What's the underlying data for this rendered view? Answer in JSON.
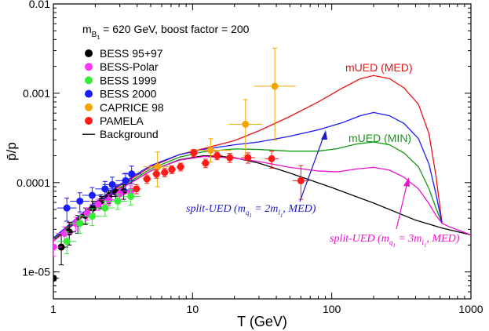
{
  "chart_data": {
    "type": "scatter",
    "xscale": "log",
    "yscale": "log",
    "xlim": [
      1,
      1000
    ],
    "ylim": [
      5e-06,
      0.01
    ],
    "xlabel": "T (GeV)",
    "ylabel": "p̄/p",
    "x_ticks": [
      {
        "value": 1,
        "label": "1"
      },
      {
        "value": 10,
        "label": "10"
      },
      {
        "value": 100,
        "label": "100"
      },
      {
        "value": 1000,
        "label": "1000"
      }
    ],
    "y_ticks": [
      {
        "value": 1e-05,
        "label": "1e-05"
      },
      {
        "value": 0.0001,
        "label": "0.0001"
      },
      {
        "value": 0.001,
        "label": "0.001"
      },
      {
        "value": 0.01,
        "label": "0.01"
      }
    ],
    "title_parts": {
      "m": "m",
      "sub": "B",
      "subsub": "1",
      "rest": " = 620 GeV, boost factor = 200"
    },
    "legend": {
      "placement": "upper-left",
      "entries": [
        {
          "label": "BESS 95+97",
          "color": "#000000",
          "kind": "marker"
        },
        {
          "label": "BESS-Polar",
          "color": "#ff33ff",
          "kind": "marker"
        },
        {
          "label": "BESS 1999",
          "color": "#33ee33",
          "kind": "marker"
        },
        {
          "label": "BESS 2000",
          "color": "#1a1aff",
          "kind": "marker"
        },
        {
          "label": "CAPRICE 98",
          "color": "#f5a500",
          "kind": "marker"
        },
        {
          "label": "PAMELA",
          "color": "#ff1a1a",
          "kind": "marker"
        },
        {
          "label": "Background",
          "color": "#000000",
          "kind": "line"
        }
      ]
    },
    "annotations": {
      "mued_med": {
        "label": "mUED (MED)",
        "color": "#ee1111"
      },
      "mued_min": {
        "label": "mUED (MIN)",
        "color": "#119911"
      },
      "split_ued_2": {
        "prefix": "split-UED (m",
        "sub1": "q",
        "subsub1": "1",
        "mid": " = 2m",
        "sub2": "l",
        "subsub2": "1",
        "suffix": ", MED)",
        "color": "#1a1acc"
      },
      "split_ued_3": {
        "prefix": "split-UED (m",
        "sub1": "q",
        "subsub1": "1",
        "mid": " = 3m",
        "sub2": "l",
        "subsub2": "1",
        "suffix": ", MED)",
        "color": "#ee11cc"
      }
    },
    "series": [
      {
        "name": "Background",
        "kind": "line",
        "color": "#000000",
        "points": [
          [
            1,
            2.25e-05
          ],
          [
            1.5,
            3.8e-05
          ],
          [
            2,
            5.5e-05
          ],
          [
            3,
            8.5e-05
          ],
          [
            5,
            0.000135
          ],
          [
            8,
            0.00018
          ],
          [
            12,
            0.0002
          ],
          [
            15,
            0.000198
          ],
          [
            20,
            0.00019
          ],
          [
            30,
            0.000165
          ],
          [
            50,
            0.000128
          ],
          [
            100,
            8.8e-05
          ],
          [
            200,
            5.9e-05
          ],
          [
            400,
            3.8e-05
          ],
          [
            620,
            3.1e-05
          ],
          [
            1000,
            2.6e-05
          ]
        ]
      },
      {
        "name": "mUED (MED)",
        "kind": "line",
        "color": "#ee1111",
        "points": [
          [
            1,
            2.35e-05
          ],
          [
            1.5,
            4e-05
          ],
          [
            2,
            5.8e-05
          ],
          [
            3,
            9.2e-05
          ],
          [
            5,
            0.00015
          ],
          [
            8,
            0.000205
          ],
          [
            12,
            0.00024
          ],
          [
            20,
            0.000295
          ],
          [
            30,
            0.00038
          ],
          [
            50,
            0.00055
          ],
          [
            80,
            0.0008
          ],
          [
            120,
            0.00115
          ],
          [
            160,
            0.00145
          ],
          [
            200,
            0.00158
          ],
          [
            260,
            0.00146
          ],
          [
            330,
            0.00115
          ],
          [
            420,
            0.00075
          ],
          [
            500,
            0.00035
          ],
          [
            560,
            0.00012
          ],
          [
            620,
            3.5e-05
          ]
        ]
      },
      {
        "name": "mUED (MIN)",
        "kind": "line",
        "color": "#119911",
        "points": [
          [
            1,
            2.3e-05
          ],
          [
            1.5,
            3.9e-05
          ],
          [
            2,
            5.6e-05
          ],
          [
            3,
            8.8e-05
          ],
          [
            5,
            0.000142
          ],
          [
            8,
            0.000192
          ],
          [
            12,
            0.000222
          ],
          [
            20,
            0.000238
          ],
          [
            30,
            0.000235
          ],
          [
            50,
            0.000225
          ],
          [
            80,
            0.000225
          ],
          [
            110,
            0.00024
          ],
          [
            150,
            0.00027
          ],
          [
            200,
            0.000285
          ],
          [
            260,
            0.000265
          ],
          [
            330,
            0.000215
          ],
          [
            420,
            0.00015
          ],
          [
            500,
            8.5e-05
          ],
          [
            560,
            5.2e-05
          ],
          [
            620,
            3.5e-05
          ]
        ]
      },
      {
        "name": "split-UED (MED, 2)",
        "kind": "line",
        "color": "#1a1aff",
        "points": [
          [
            1,
            2.4e-05
          ],
          [
            1.5,
            4.1e-05
          ],
          [
            2,
            6e-05
          ],
          [
            3,
            9.5e-05
          ],
          [
            5,
            0.000155
          ],
          [
            8,
            0.000205
          ],
          [
            12,
            0.000235
          ],
          [
            20,
            0.000265
          ],
          [
            30,
            0.000285
          ],
          [
            50,
            0.00033
          ],
          [
            80,
            0.00039
          ],
          [
            120,
            0.00047
          ],
          [
            160,
            0.00056
          ],
          [
            200,
            0.00061
          ],
          [
            260,
            0.00056
          ],
          [
            330,
            0.00046
          ],
          [
            420,
            0.00031
          ],
          [
            500,
            0.00016
          ],
          [
            560,
            7.5e-05
          ],
          [
            620,
            3.5e-05
          ]
        ]
      },
      {
        "name": "split-UED (MED, 3)",
        "kind": "line",
        "color": "#ee11cc",
        "points": [
          [
            1,
            2.2e-05
          ],
          [
            1.5,
            3.7e-05
          ],
          [
            2,
            5.4e-05
          ],
          [
            3,
            8.4e-05
          ],
          [
            5,
            0.000135
          ],
          [
            8,
            0.000178
          ],
          [
            12,
            0.000196
          ],
          [
            20,
            0.000188
          ],
          [
            30,
            0.000172
          ],
          [
            50,
            0.000148
          ],
          [
            80,
            0.000135
          ],
          [
            110,
            0.000132
          ],
          [
            150,
            0.000142
          ],
          [
            200,
            0.000148
          ],
          [
            260,
            0.000138
          ],
          [
            330,
            0.000115
          ],
          [
            420,
            8.5e-05
          ],
          [
            500,
            5.8e-05
          ],
          [
            560,
            4.3e-05
          ],
          [
            620,
            3.5e-05
          ],
          [
            700,
            3.2e-05
          ],
          [
            1000,
            2.6e-05
          ]
        ]
      },
      {
        "name": "BESS 95+97",
        "kind": "points",
        "color": "#000000",
        "points": [
          [
            1.0,
            8.5e-06,
            1.5e-06,
            1.5e-06,
            0.04
          ],
          [
            1.14,
            1.9e-05,
            7e-06,
            7e-06,
            0.05
          ],
          [
            1.3,
            2.8e-05,
            8e-06,
            8e-06,
            0.05
          ],
          [
            1.5,
            3.5e-05,
            8e-06,
            8e-06,
            0.06
          ],
          [
            1.7,
            4.3e-05,
            9e-06,
            9e-06,
            0.06
          ],
          [
            1.93,
            5.2e-05,
            1e-05,
            1e-05,
            0.06
          ],
          [
            2.2,
            6.2e-05,
            1.1e-05,
            1.1e-05,
            0.07
          ],
          [
            2.5,
            7e-05,
            1.2e-05,
            1.2e-05,
            0.07
          ],
          [
            2.8,
            7.8e-05,
            1.4e-05,
            1.4e-05,
            0.07
          ],
          [
            3.2,
            8e-05,
            1.5e-05,
            1.5e-05,
            0.07
          ]
        ]
      },
      {
        "name": "BESS-Polar",
        "kind": "points",
        "color": "#ff33ff",
        "points": [
          [
            1.0,
            1.9e-05,
            4e-06,
            4e-06,
            0.06
          ],
          [
            1.2,
            2.7e-05,
            5e-06,
            5e-06,
            0.06
          ],
          [
            1.45,
            3.5e-05,
            6e-06,
            6e-06,
            0.06
          ],
          [
            1.75,
            4.5e-05,
            7e-06,
            7e-06,
            0.06
          ],
          [
            2.1,
            5.7e-05,
            8e-06,
            8e-06,
            0.06
          ],
          [
            2.5,
            6.4e-05,
            9e-06,
            9e-06,
            0.06
          ],
          [
            3.0,
            7.5e-05,
            1e-05,
            1e-05,
            0.06
          ],
          [
            3.6,
            8e-05,
            1.2e-05,
            1.2e-05,
            0.06
          ]
        ]
      },
      {
        "name": "BESS 1999",
        "kind": "points",
        "color": "#33ee33",
        "points": [
          [
            1.25,
            2.2e-05,
            6e-06,
            6e-06,
            0.07
          ],
          [
            1.55,
            3.5e-05,
            8e-06,
            8e-06,
            0.07
          ],
          [
            1.9,
            4.2e-05,
            9e-06,
            9e-06,
            0.07
          ],
          [
            2.35,
            5.2e-05,
            1e-05,
            1e-05,
            0.07
          ],
          [
            2.9,
            6.2e-05,
            1.2e-05,
            1.2e-05,
            0.07
          ],
          [
            3.6,
            7e-05,
            1.4e-05,
            1.4e-05,
            0.07
          ]
        ]
      },
      {
        "name": "BESS 2000",
        "kind": "points",
        "color": "#1a1aff",
        "points": [
          [
            1.25,
            5.2e-05,
            1.5e-05,
            1.5e-05,
            0.07
          ],
          [
            1.55,
            6.2e-05,
            1.5e-05,
            1.5e-05,
            0.07
          ],
          [
            1.9,
            7.2e-05,
            1.6e-05,
            1.6e-05,
            0.07
          ],
          [
            2.35,
            8.5e-05,
            1.8e-05,
            1.8e-05,
            0.07
          ],
          [
            2.65,
            9.5e-05,
            2e-05,
            2e-05,
            0.07
          ],
          [
            3.3,
            0.000105,
            2.2e-05,
            2.2e-05,
            0.07
          ],
          [
            3.65,
            0.000125,
            2.8e-05,
            2.8e-05,
            0.07
          ]
        ]
      },
      {
        "name": "CAPRICE 98",
        "kind": "points",
        "color": "#f5a500",
        "points": [
          [
            5.6,
            0.00015,
            7e-05,
            6e-05,
            0.1
          ],
          [
            13.5,
            0.00023,
            8e-05,
            6e-05,
            0.15
          ],
          [
            24,
            0.00045,
            0.0004,
            0.00025,
            0.12
          ],
          [
            39,
            0.0012,
            0.002,
            0.0009,
            0.15
          ]
        ]
      },
      {
        "name": "PAMELA",
        "kind": "points",
        "color": "#ff1a1a",
        "points": [
          [
            3.95,
            8.5e-05,
            1e-05,
            1e-05,
            0.03
          ],
          [
            4.7,
            0.00011,
            1.2e-05,
            1.2e-05,
            0.03
          ],
          [
            5.5,
            0.000125,
            1.3e-05,
            1.3e-05,
            0.03
          ],
          [
            6.3,
            0.00013,
            1.4e-05,
            1.4e-05,
            0.03
          ],
          [
            7.1,
            0.00014,
            1.4e-05,
            1.4e-05,
            0.03
          ],
          [
            8.2,
            0.00015,
            1.5e-05,
            1.5e-05,
            0.03
          ],
          [
            10.2,
            0.000215,
            2e-05,
            2e-05,
            0.03
          ],
          [
            12.4,
            0.000165,
            1.8e-05,
            1.8e-05,
            0.03
          ],
          [
            15,
            0.0002,
            2e-05,
            2e-05,
            0.04
          ],
          [
            18.5,
            0.00019,
            2.2e-05,
            2.2e-05,
            0.04
          ],
          [
            25,
            0.00019,
            2.5e-05,
            2.5e-05,
            0.05
          ],
          [
            37,
            0.000185,
            4e-05,
            4e-05,
            0.05
          ],
          [
            60,
            0.000105,
            5e-05,
            4e-05,
            0.06
          ]
        ]
      }
    ]
  }
}
